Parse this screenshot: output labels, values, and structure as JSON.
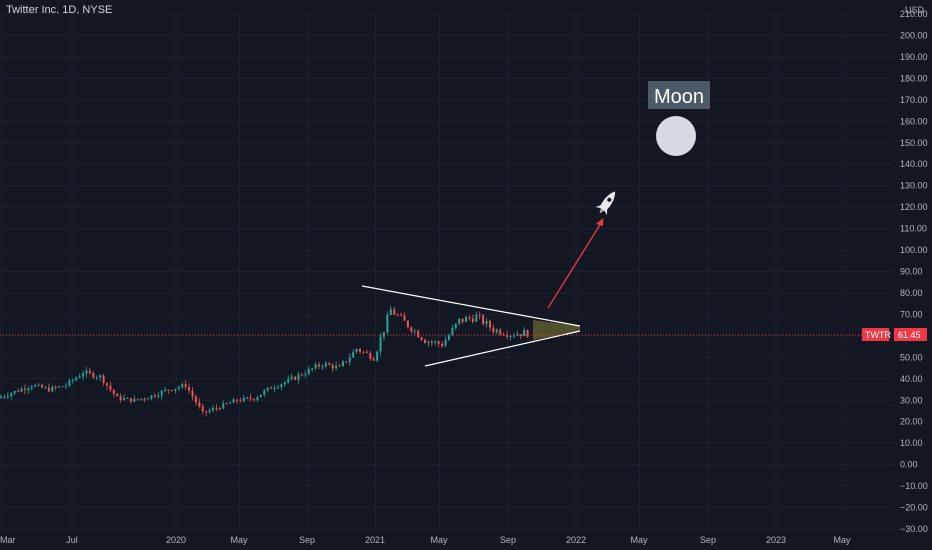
{
  "header": {
    "title": "Twitter Inc, 1D, NYSE"
  },
  "axis": {
    "currency": "USD",
    "y_ticks": [
      "210.00",
      "200.00",
      "190.00",
      "180.00",
      "170.00",
      "160.00",
      "150.00",
      "140.00",
      "130.00",
      "120.00",
      "110.00",
      "100.00",
      "90.00",
      "80.00",
      "70.00",
      "60.00",
      "50.00",
      "40.00",
      "30.00",
      "20.00",
      "10.00",
      "0.00",
      "−10.00",
      "−20.00",
      "−30.00"
    ],
    "x_ticks": [
      "Mar",
      "Jul",
      "2020",
      "May",
      "Sep",
      "2021",
      "May",
      "Sep",
      "2022",
      "May",
      "Sep",
      "2023",
      "May"
    ]
  },
  "price_badge": {
    "symbol": "TWTR",
    "value": "61.45"
  },
  "annotation": {
    "text": "Moon"
  },
  "colors": {
    "background": "#131722",
    "up": "#26a69a",
    "down": "#ef5350",
    "badge": "#f23645",
    "triangle_fill": "#5d5a2e",
    "arrow": "#f23645"
  },
  "icons": [
    "rocket-icon",
    "moon-circle"
  ],
  "chart_data": {
    "type": "candlestick",
    "series": [
      {
        "name": "TWTR",
        "points": [
          [
            "2019-03",
            31
          ],
          [
            "2019-04",
            34
          ],
          [
            "2019-05",
            37
          ],
          [
            "2019-06",
            35
          ],
          [
            "2019-07",
            37
          ],
          [
            "2019-08",
            43
          ],
          [
            "2019-09",
            41
          ],
          [
            "2019-10",
            31
          ],
          [
            "2019-11",
            30
          ],
          [
            "2019-12",
            32
          ],
          [
            "2020-01",
            35
          ],
          [
            "2020-02",
            37
          ],
          [
            "2020-03",
            24
          ],
          [
            "2020-04",
            27
          ],
          [
            "2020-05",
            30
          ],
          [
            "2020-06",
            31
          ],
          [
            "2020-07",
            36
          ],
          [
            "2020-08",
            39
          ],
          [
            "2020-09",
            43
          ],
          [
            "2020-10",
            47
          ],
          [
            "2020-11",
            45
          ],
          [
            "2020-12",
            54
          ],
          [
            "2021-01",
            50
          ],
          [
            "2021-02",
            72
          ],
          [
            "2021-03",
            65
          ],
          [
            "2021-04",
            58
          ],
          [
            "2021-05",
            56
          ],
          [
            "2021-06",
            67
          ],
          [
            "2021-07",
            69
          ],
          [
            "2021-08",
            63
          ],
          [
            "2021-09",
            61
          ],
          [
            "2021-10",
            61.45
          ]
        ]
      }
    ],
    "last_price": 61.45,
    "ylim": [
      -30,
      210
    ],
    "y_scale": "linear"
  }
}
